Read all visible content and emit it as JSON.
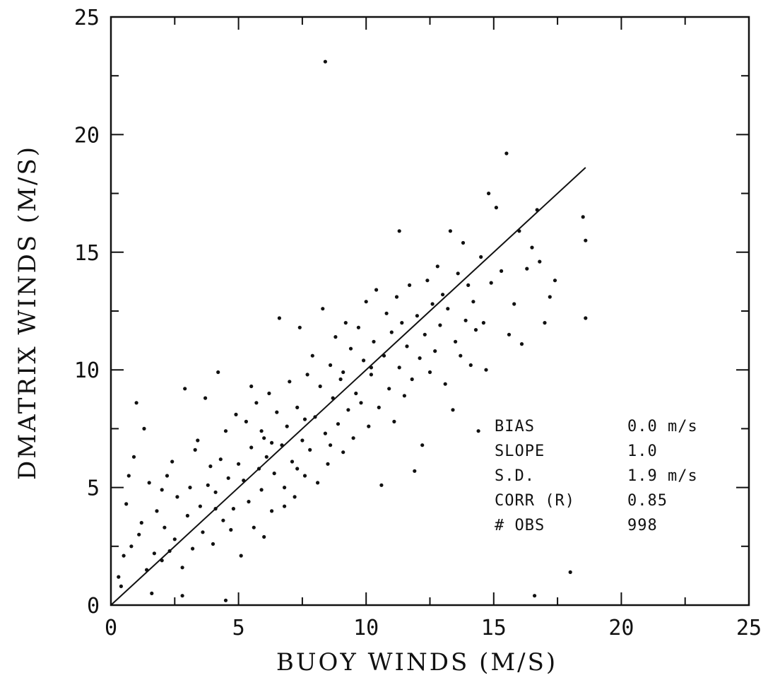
{
  "chart_data": {
    "type": "scatter",
    "title": "",
    "xlabel": "BUOY WINDS (M/S)",
    "ylabel": "DMATRIX WINDS (M/S)",
    "xlim": [
      0,
      25
    ],
    "ylim": [
      0,
      25
    ],
    "x_ticks": [
      "0",
      "5",
      "10",
      "15",
      "20",
      "25"
    ],
    "y_ticks": [
      "0",
      "5",
      "10",
      "15",
      "20",
      "25"
    ],
    "grid": false,
    "fit_line": {
      "x": [
        0,
        18.6
      ],
      "y": [
        0,
        18.6
      ]
    },
    "stats": [
      {
        "label": "BIAS",
        "value": "0.0  m/s"
      },
      {
        "label": "SLOPE",
        "value": "1.0"
      },
      {
        "label": "S.D.",
        "value": "1.9  m/s"
      },
      {
        "label": "CORR (R)",
        "value": "0.85"
      },
      {
        "label": "# OBS",
        "value": "998"
      }
    ],
    "points": [
      [
        0.3,
        1.2
      ],
      [
        0.5,
        2.1
      ],
      [
        0.4,
        0.8
      ],
      [
        0.8,
        2.5
      ],
      [
        0.6,
        4.3
      ],
      [
        0.9,
        6.3
      ],
      [
        1.0,
        8.6
      ],
      [
        1.2,
        3.5
      ],
      [
        1.4,
        1.5
      ],
      [
        1.5,
        5.2
      ],
      [
        1.3,
        7.5
      ],
      [
        1.7,
        2.2
      ],
      [
        1.8,
        4.0
      ],
      [
        2.0,
        1.9
      ],
      [
        2.1,
        3.3
      ],
      [
        2.2,
        5.5
      ],
      [
        2.4,
        6.1
      ],
      [
        2.5,
        2.8
      ],
      [
        2.6,
        4.6
      ],
      [
        2.8,
        1.6
      ],
      [
        2.9,
        9.2
      ],
      [
        3.0,
        3.8
      ],
      [
        3.1,
        5.0
      ],
      [
        3.2,
        2.4
      ],
      [
        3.3,
        6.6
      ],
      [
        3.5,
        4.2
      ],
      [
        3.6,
        3.1
      ],
      [
        3.7,
        8.8
      ],
      [
        3.8,
        5.1
      ],
      [
        4.0,
        2.6
      ],
      [
        4.1,
        4.8
      ],
      [
        4.2,
        9.9
      ],
      [
        4.3,
        6.2
      ],
      [
        4.4,
        3.6
      ],
      [
        4.5,
        7.4
      ],
      [
        4.6,
        5.4
      ],
      [
        4.8,
        4.1
      ],
      [
        4.9,
        8.1
      ],
      [
        5.0,
        6.0
      ],
      [
        5.1,
        2.1
      ],
      [
        5.2,
        5.3
      ],
      [
        5.3,
        7.8
      ],
      [
        5.4,
        4.4
      ],
      [
        5.5,
        6.7
      ],
      [
        5.6,
        3.3
      ],
      [
        5.7,
        8.6
      ],
      [
        5.8,
        5.8
      ],
      [
        5.9,
        4.9
      ],
      [
        6.0,
        7.1
      ],
      [
        6.1,
        6.3
      ],
      [
        6.2,
        9.0
      ],
      [
        6.3,
        4.0
      ],
      [
        6.4,
        5.6
      ],
      [
        6.5,
        8.2
      ],
      [
        6.6,
        12.2
      ],
      [
        6.7,
        6.8
      ],
      [
        6.8,
        5.0
      ],
      [
        6.9,
        7.6
      ],
      [
        7.0,
        9.5
      ],
      [
        7.1,
        6.1
      ],
      [
        7.2,
        4.6
      ],
      [
        7.3,
        8.4
      ],
      [
        7.4,
        11.8
      ],
      [
        7.5,
        7.0
      ],
      [
        7.6,
        5.5
      ],
      [
        7.7,
        9.8
      ],
      [
        7.8,
        6.6
      ],
      [
        7.9,
        10.6
      ],
      [
        8.0,
        8.0
      ],
      [
        8.1,
        5.2
      ],
      [
        8.2,
        9.3
      ],
      [
        8.3,
        12.6
      ],
      [
        8.4,
        7.3
      ],
      [
        8.5,
        6.0
      ],
      [
        8.6,
        10.2
      ],
      [
        8.7,
        8.8
      ],
      [
        8.8,
        11.4
      ],
      [
        8.9,
        7.7
      ],
      [
        9.0,
        9.6
      ],
      [
        9.1,
        6.5
      ],
      [
        9.2,
        12.0
      ],
      [
        9.3,
        8.3
      ],
      [
        9.4,
        10.9
      ],
      [
        9.5,
        7.1
      ],
      [
        9.6,
        9.0
      ],
      [
        9.7,
        11.8
      ],
      [
        9.8,
        8.6
      ],
      [
        9.9,
        10.4
      ],
      [
        10.0,
        12.9
      ],
      [
        10.1,
        7.6
      ],
      [
        10.2,
        9.8
      ],
      [
        10.3,
        11.2
      ],
      [
        10.4,
        13.4
      ],
      [
        10.5,
        8.4
      ],
      [
        10.6,
        5.1
      ],
      [
        10.7,
        10.6
      ],
      [
        10.8,
        12.4
      ],
      [
        10.9,
        9.2
      ],
      [
        11.0,
        11.6
      ],
      [
        11.1,
        7.8
      ],
      [
        11.2,
        13.1
      ],
      [
        11.3,
        10.1
      ],
      [
        11.4,
        12.0
      ],
      [
        11.5,
        8.9
      ],
      [
        11.6,
        11.0
      ],
      [
        11.7,
        13.6
      ],
      [
        11.8,
        9.6
      ],
      [
        11.9,
        5.7
      ],
      [
        12.0,
        12.3
      ],
      [
        12.1,
        10.5
      ],
      [
        12.2,
        6.8
      ],
      [
        12.3,
        11.5
      ],
      [
        12.4,
        13.8
      ],
      [
        12.5,
        9.9
      ],
      [
        12.6,
        12.8
      ],
      [
        12.7,
        10.8
      ],
      [
        12.8,
        14.4
      ],
      [
        12.9,
        11.9
      ],
      [
        13.0,
        13.2
      ],
      [
        13.1,
        9.4
      ],
      [
        13.2,
        12.6
      ],
      [
        13.3,
        15.9
      ],
      [
        13.4,
        8.3
      ],
      [
        13.5,
        11.2
      ],
      [
        13.6,
        14.1
      ],
      [
        13.7,
        10.6
      ],
      [
        13.8,
        15.4
      ],
      [
        13.9,
        12.1
      ],
      [
        14.0,
        13.6
      ],
      [
        14.1,
        10.2
      ],
      [
        14.2,
        12.9
      ],
      [
        14.3,
        11.7
      ],
      [
        14.4,
        7.4
      ],
      [
        14.5,
        14.8
      ],
      [
        14.6,
        12.0
      ],
      [
        14.7,
        10.0
      ],
      [
        14.8,
        17.5
      ],
      [
        14.9,
        13.7
      ],
      [
        15.1,
        16.9
      ],
      [
        15.3,
        14.2
      ],
      [
        15.5,
        19.2
      ],
      [
        15.6,
        11.5
      ],
      [
        15.8,
        12.8
      ],
      [
        16.0,
        15.9
      ],
      [
        16.1,
        11.1
      ],
      [
        16.3,
        14.3
      ],
      [
        16.5,
        15.2
      ],
      [
        16.7,
        16.8
      ],
      [
        16.8,
        14.6
      ],
      [
        17.0,
        12.0
      ],
      [
        17.2,
        13.1
      ],
      [
        17.4,
        13.8
      ],
      [
        18.5,
        16.5
      ],
      [
        18.6,
        15.5
      ],
      [
        18.6,
        12.2
      ],
      [
        11.3,
        15.9
      ],
      [
        8.4,
        23.1
      ],
      [
        2.0,
        4.9
      ],
      [
        3.4,
        7.0
      ],
      [
        5.5,
        9.3
      ],
      [
        6.3,
        6.9
      ],
      [
        7.6,
        7.9
      ],
      [
        9.1,
        9.9
      ],
      [
        10.2,
        10.1
      ],
      [
        1.1,
        3.0
      ],
      [
        2.3,
        2.3
      ],
      [
        4.1,
        4.1
      ],
      [
        5.9,
        7.4
      ],
      [
        6.8,
        4.2
      ],
      [
        8.6,
        6.8
      ],
      [
        3.9,
        5.9
      ],
      [
        4.7,
        3.2
      ],
      [
        6.0,
        2.9
      ],
      [
        7.3,
        5.8
      ],
      [
        0.7,
        5.5
      ],
      [
        1.6,
        0.5
      ],
      [
        2.8,
        0.4
      ],
      [
        4.5,
        0.2
      ],
      [
        18.0,
        1.4
      ],
      [
        16.6,
        0.4
      ]
    ]
  }
}
